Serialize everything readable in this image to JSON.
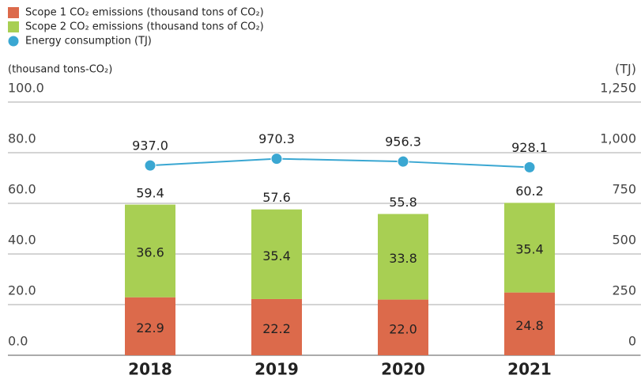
{
  "chart_data": {
    "type": "bar",
    "stacked": true,
    "y_axis_label": "(thousand tons-CO₂)",
    "y2_axis_label": "(TJ)",
    "categories": [
      "2018",
      "2019",
      "2020",
      "2021"
    ],
    "series": [
      {
        "name": "Scope 1 CO₂ emissions (thousand tons of CO₂)",
        "color": "#dc6a4b",
        "values": [
          22.9,
          22.2,
          22.0,
          24.8
        ],
        "value_labels": [
          "22.9",
          "22.2",
          "22.0",
          "24.8"
        ]
      },
      {
        "name": "Scope 2 CO₂ emissions (thousand tons of CO₂)",
        "color": "#a8cf53",
        "values": [
          36.6,
          35.4,
          33.8,
          35.4
        ],
        "value_labels": [
          "36.6",
          "35.4",
          "33.8",
          "35.4"
        ]
      },
      {
        "name": "Energy consumption (TJ)",
        "type": "line",
        "axis": "y2",
        "color": "#3aa7d2",
        "values": [
          937.0,
          970.3,
          956.3,
          928.1
        ],
        "value_labels": [
          "937.0",
          "970.3",
          "956.3",
          "928.1"
        ]
      }
    ],
    "totals": [
      59.4,
      57.6,
      55.8,
      60.2
    ],
    "ylim": [
      0,
      100
    ],
    "yticks": [
      {
        "value": 0,
        "label": "0.0"
      },
      {
        "value": 20,
        "label": "20.0"
      },
      {
        "value": 40,
        "label": "40.0"
      },
      {
        "value": 60,
        "label": "60.0"
      },
      {
        "value": 80,
        "label": "80.0"
      },
      {
        "value": 100,
        "label": "100.0"
      }
    ],
    "y2lim": [
      0,
      1250
    ],
    "y2ticks": [
      0,
      250,
      500,
      750,
      {
        "value": 1000,
        "label": "1,000"
      },
      {
        "value": 1250,
        "label": "1,250"
      }
    ],
    "grid": true,
    "legend": "top-left"
  }
}
